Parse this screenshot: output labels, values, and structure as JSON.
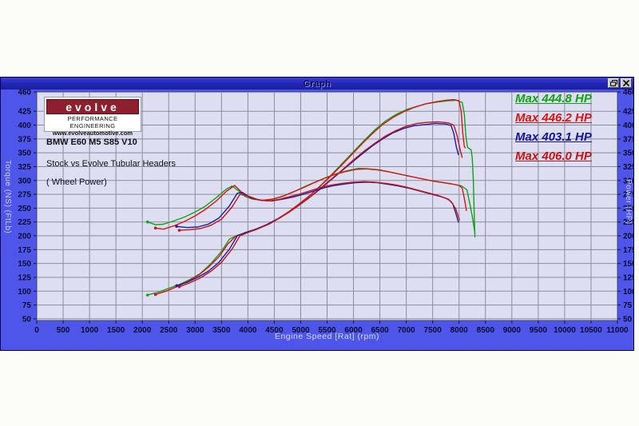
{
  "window": {
    "title": "Graph"
  },
  "logo": {
    "brand": "evolve",
    "line1": "PERFORMANCE ENGINEERING",
    "line2": "www.evolveautomotive.com"
  },
  "annotations": {
    "line1": "BMW E60 M5 S85 V10",
    "line2": "Stock vs Evolve Tubular Headers",
    "line3": "( Wheel Power)"
  },
  "colors": {
    "frame_blue": "#4E55E9",
    "plot_bg": "#DEDEF2",
    "grid": "#8B8B9D",
    "tick_text": "#0C0C30"
  },
  "chart_data": {
    "type": "line",
    "xlabel": "Engine Speed [Rat] (rpm)",
    "ylabel_left": "Torque (NS) (FtLb)",
    "ylabel_right": "Power (HP)",
    "xlim": [
      0,
      11000
    ],
    "ylim": [
      47,
      460
    ],
    "grid": true,
    "xticks": [
      0,
      500,
      1000,
      1500,
      2000,
      2500,
      3000,
      3500,
      4000,
      4500,
      5000,
      5500,
      6000,
      6500,
      7000,
      7500,
      8000,
      8500,
      9000,
      9500,
      10000,
      10500,
      11000
    ],
    "yticks": [
      460,
      425,
      400,
      375,
      350,
      325,
      300,
      275,
      250,
      225,
      200,
      175,
      150,
      125,
      100,
      75,
      50
    ],
    "legend": [
      {
        "label": "Max 444.8 HP",
        "color": "#0FA314"
      },
      {
        "label": "Max 446.2 HP",
        "color": "#D81515"
      },
      {
        "label": "Max 403.1 HP",
        "color": "#14149B"
      },
      {
        "label": "Max 406.0 HP",
        "color": "#C51313"
      }
    ],
    "series": [
      {
        "name": "power-evolve-run1",
        "color": "#0FA314",
        "max_hp": 444.8,
        "points": [
          [
            2100,
            93
          ],
          [
            2300,
            98
          ],
          [
            2500,
            105
          ],
          [
            2700,
            112
          ],
          [
            2900,
            121
          ],
          [
            3100,
            132
          ],
          [
            3300,
            150
          ],
          [
            3500,
            172
          ],
          [
            3650,
            194
          ],
          [
            3800,
            201
          ],
          [
            4000,
            206
          ],
          [
            4200,
            213
          ],
          [
            4400,
            222
          ],
          [
            4600,
            232
          ],
          [
            4800,
            245
          ],
          [
            5000,
            260
          ],
          [
            5200,
            275
          ],
          [
            5400,
            293
          ],
          [
            5600,
            312
          ],
          [
            5800,
            332
          ],
          [
            6000,
            352
          ],
          [
            6200,
            372
          ],
          [
            6400,
            391
          ],
          [
            6600,
            407
          ],
          [
            6800,
            419
          ],
          [
            7000,
            428
          ],
          [
            7200,
            434
          ],
          [
            7400,
            439
          ],
          [
            7600,
            442
          ],
          [
            7800,
            444
          ],
          [
            7950,
            444.8
          ],
          [
            8060,
            441
          ],
          [
            8100,
            420
          ],
          [
            8130,
            380
          ],
          [
            8160,
            360
          ],
          [
            8230,
            355
          ],
          [
            8250,
            340
          ],
          [
            8270,
            300
          ],
          [
            8285,
            245
          ],
          [
            8300,
            197
          ]
        ]
      },
      {
        "name": "power-evolve-run2",
        "color": "#D81515",
        "max_hp": 446.2,
        "points": [
          [
            2250,
            94
          ],
          [
            2450,
            100
          ],
          [
            2650,
            108
          ],
          [
            2850,
            117
          ],
          [
            3050,
            128
          ],
          [
            3250,
            143
          ],
          [
            3450,
            162
          ],
          [
            3620,
            185
          ],
          [
            3780,
            200
          ],
          [
            3950,
            205
          ],
          [
            4150,
            211
          ],
          [
            4350,
            220
          ],
          [
            4550,
            230
          ],
          [
            4750,
            242
          ],
          [
            4950,
            256
          ],
          [
            5150,
            271
          ],
          [
            5350,
            288
          ],
          [
            5550,
            306
          ],
          [
            5750,
            325
          ],
          [
            5950,
            345
          ],
          [
            6150,
            365
          ],
          [
            6350,
            384
          ],
          [
            6550,
            401
          ],
          [
            6750,
            414
          ],
          [
            6950,
            424
          ],
          [
            7150,
            432
          ],
          [
            7350,
            438
          ],
          [
            7550,
            442
          ],
          [
            7750,
            445
          ],
          [
            7900,
            446.2
          ],
          [
            8000,
            444
          ],
          [
            8040,
            425
          ],
          [
            8070,
            385
          ],
          [
            8100,
            362
          ],
          [
            8120,
            358
          ]
        ]
      },
      {
        "name": "power-stock-run1",
        "color": "#1E1E9C",
        "max_hp": 403.1,
        "points": [
          [
            2650,
            110
          ],
          [
            2850,
            116
          ],
          [
            3050,
            125
          ],
          [
            3250,
            136
          ],
          [
            3450,
            152
          ],
          [
            3650,
            176
          ],
          [
            3800,
            200
          ],
          [
            3950,
            206
          ],
          [
            4150,
            212
          ],
          [
            4350,
            220
          ],
          [
            4550,
            230
          ],
          [
            4750,
            241
          ],
          [
            4950,
            254
          ],
          [
            5150,
            268
          ],
          [
            5350,
            283
          ],
          [
            5550,
            299
          ],
          [
            5750,
            315
          ],
          [
            5950,
            331
          ],
          [
            6150,
            347
          ],
          [
            6350,
            362
          ],
          [
            6550,
            375
          ],
          [
            6750,
            386
          ],
          [
            6950,
            394
          ],
          [
            7150,
            399
          ],
          [
            7350,
            401
          ],
          [
            7550,
            403.1
          ],
          [
            7750,
            402
          ],
          [
            7850,
            399
          ],
          [
            7900,
            385
          ],
          [
            7950,
            360
          ],
          [
            7990,
            346
          ]
        ]
      },
      {
        "name": "power-stock-run2",
        "color": "#C51313",
        "max_hp": 406.0,
        "points": [
          [
            2700,
            108
          ],
          [
            2900,
            115
          ],
          [
            3100,
            124
          ],
          [
            3300,
            136
          ],
          [
            3500,
            152
          ],
          [
            3700,
            176
          ],
          [
            3850,
            200
          ],
          [
            4000,
            206
          ],
          [
            4200,
            213
          ],
          [
            4400,
            221
          ],
          [
            4600,
            232
          ],
          [
            4800,
            244
          ],
          [
            5000,
            258
          ],
          [
            5200,
            272
          ],
          [
            5400,
            288
          ],
          [
            5600,
            304
          ],
          [
            5800,
            320
          ],
          [
            6000,
            337
          ],
          [
            6200,
            353
          ],
          [
            6400,
            367
          ],
          [
            6600,
            380
          ],
          [
            6800,
            390
          ],
          [
            7000,
            398
          ],
          [
            7200,
            403
          ],
          [
            7400,
            405
          ],
          [
            7600,
            406
          ],
          [
            7800,
            404
          ],
          [
            7900,
            400
          ],
          [
            7960,
            382
          ],
          [
            8020,
            356
          ],
          [
            8060,
            341
          ]
        ]
      },
      {
        "name": "torque-evolve-run1",
        "color": "#0FA314",
        "points": [
          [
            2100,
            225
          ],
          [
            2250,
            220
          ],
          [
            2400,
            221
          ],
          [
            2600,
            227
          ],
          [
            2800,
            234
          ],
          [
            3000,
            243
          ],
          [
            3200,
            254
          ],
          [
            3400,
            269
          ],
          [
            3600,
            285
          ],
          [
            3700,
            290
          ],
          [
            3800,
            283
          ],
          [
            3950,
            271
          ],
          [
            4100,
            266
          ],
          [
            4300,
            264
          ],
          [
            4500,
            267
          ],
          [
            4700,
            273
          ],
          [
            4900,
            281
          ],
          [
            5100,
            290
          ],
          [
            5300,
            298
          ],
          [
            5500,
            306
          ],
          [
            5700,
            313
          ],
          [
            5900,
            318
          ],
          [
            6100,
            322
          ],
          [
            6300,
            321
          ],
          [
            6500,
            319
          ],
          [
            6700,
            315
          ],
          [
            6900,
            311
          ],
          [
            7100,
            307
          ],
          [
            7300,
            303
          ],
          [
            7500,
            299
          ],
          [
            7700,
            296
          ],
          [
            7900,
            293
          ],
          [
            8050,
            290
          ],
          [
            8150,
            283
          ],
          [
            8200,
            260
          ],
          [
            8250,
            235
          ],
          [
            8300,
            205
          ]
        ]
      },
      {
        "name": "torque-evolve-run2",
        "color": "#D81515",
        "points": [
          [
            2250,
            214
          ],
          [
            2400,
            212
          ],
          [
            2600,
            218
          ],
          [
            2800,
            226
          ],
          [
            3000,
            236
          ],
          [
            3200,
            248
          ],
          [
            3400,
            263
          ],
          [
            3600,
            281
          ],
          [
            3750,
            291
          ],
          [
            3900,
            277
          ],
          [
            4050,
            268
          ],
          [
            4250,
            264
          ],
          [
            4450,
            266
          ],
          [
            4650,
            271
          ],
          [
            4850,
            279
          ],
          [
            5050,
            287
          ],
          [
            5250,
            296
          ],
          [
            5450,
            304
          ],
          [
            5650,
            311
          ],
          [
            5850,
            316
          ],
          [
            6050,
            320
          ],
          [
            6250,
            321
          ],
          [
            6450,
            319
          ],
          [
            6650,
            316
          ],
          [
            6850,
            312
          ],
          [
            7050,
            308
          ],
          [
            7250,
            304
          ],
          [
            7450,
            300
          ],
          [
            7650,
            297
          ],
          [
            7850,
            294
          ],
          [
            8000,
            291
          ],
          [
            8060,
            286
          ],
          [
            8100,
            268
          ],
          [
            8140,
            245
          ]
        ]
      },
      {
        "name": "torque-stock-run1",
        "color": "#1E1E9C",
        "points": [
          [
            2650,
            217
          ],
          [
            2850,
            215
          ],
          [
            3050,
            216
          ],
          [
            3250,
            221
          ],
          [
            3450,
            232
          ],
          [
            3650,
            254
          ],
          [
            3800,
            277
          ],
          [
            3900,
            278
          ],
          [
            4050,
            269
          ],
          [
            4250,
            264
          ],
          [
            4450,
            263
          ],
          [
            4650,
            266
          ],
          [
            4850,
            270
          ],
          [
            5050,
            275
          ],
          [
            5250,
            281
          ],
          [
            5450,
            287
          ],
          [
            5650,
            291
          ],
          [
            5850,
            294
          ],
          [
            6050,
            296
          ],
          [
            6250,
            297
          ],
          [
            6450,
            296
          ],
          [
            6650,
            293
          ],
          [
            6850,
            290
          ],
          [
            7050,
            286
          ],
          [
            7250,
            281
          ],
          [
            7450,
            276
          ],
          [
            7650,
            271
          ],
          [
            7800,
            266
          ],
          [
            7880,
            258
          ],
          [
            7940,
            240
          ],
          [
            7990,
            224
          ]
        ]
      },
      {
        "name": "torque-stock-run2",
        "color": "#C51313",
        "points": [
          [
            2700,
            210
          ],
          [
            2900,
            211
          ],
          [
            3100,
            213
          ],
          [
            3300,
            219
          ],
          [
            3500,
            230
          ],
          [
            3700,
            252
          ],
          [
            3850,
            275
          ],
          [
            4000,
            272
          ],
          [
            4200,
            265
          ],
          [
            4400,
            263
          ],
          [
            4600,
            266
          ],
          [
            4800,
            271
          ],
          [
            5000,
            276
          ],
          [
            5200,
            282
          ],
          [
            5400,
            288
          ],
          [
            5600,
            292
          ],
          [
            5800,
            295
          ],
          [
            6000,
            297
          ],
          [
            6200,
            298
          ],
          [
            6400,
            297
          ],
          [
            6600,
            295
          ],
          [
            6800,
            292
          ],
          [
            7000,
            288
          ],
          [
            7200,
            283
          ],
          [
            7400,
            278
          ],
          [
            7600,
            273
          ],
          [
            7750,
            268
          ],
          [
            7850,
            262
          ],
          [
            7940,
            248
          ],
          [
            8010,
            228
          ]
        ]
      }
    ]
  }
}
